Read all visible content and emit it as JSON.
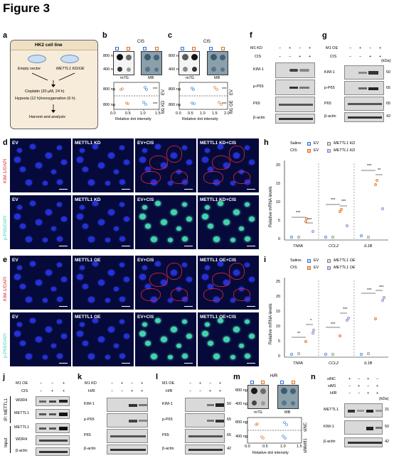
{
  "figure_title": "Figure 3",
  "panel_letters": [
    "a",
    "b",
    "c",
    "d",
    "e",
    "f",
    "g",
    "h",
    "i",
    "j",
    "k",
    "l",
    "m",
    "n"
  ],
  "panel_a": {
    "header": "HK2 cell line",
    "left_group": "Empty vector",
    "right_group": "METTL1 KD/OE",
    "step1": "Cisplatin (20 μM, 24 h)",
    "step2": "Hypoxia (12 h)/reoxygenation (6 h)",
    "step3": "Harvest and analysis"
  },
  "panel_b": {
    "top_label": "CIS",
    "amounts": [
      "800 ng",
      "400 ng"
    ],
    "stain_left": "m7G",
    "stain_right": "MB",
    "legend": [
      "EV",
      "M1 KD"
    ],
    "lower_amount": "800 ng",
    "xlabel": "Relative dot intensity",
    "ticks": [
      "0.0",
      "0.5",
      "1.0",
      "1.5"
    ],
    "sig": "***"
  },
  "panel_c": {
    "top_label": "CIS",
    "amounts": [
      "800 ng",
      "400 ng"
    ],
    "stain_left": "m7G",
    "stain_right": "MB",
    "legend": [
      "EV",
      "M1 OE"
    ],
    "lower_amount": "800 ng",
    "xlabel": "Relative dot intensity",
    "ticks": [
      "0.0",
      "0.5",
      "1.0",
      "1.5",
      "2.0"
    ],
    "sig": "***"
  },
  "panel_f": {
    "rows": [
      "M1 KD",
      "CIS"
    ],
    "row1": [
      "−",
      "+",
      "−",
      "+"
    ],
    "row2": [
      "−",
      "−",
      "+",
      "+"
    ],
    "bands": [
      "KIM-1",
      "p-P65",
      "P65",
      "β-actin"
    ]
  },
  "panel_g": {
    "rows": [
      "M1 OE",
      "CIS"
    ],
    "row1": [
      "−",
      "+",
      "−",
      "+"
    ],
    "row2": [
      "−",
      "−",
      "+",
      "+"
    ],
    "unit": "(kDa)",
    "bands": [
      "KIM-1",
      "p-P65",
      "P65",
      "β-actin"
    ],
    "kda": [
      "50",
      "65",
      "65",
      "42"
    ]
  },
  "panel_d": {
    "row_labels": [
      "KIM-1/DAPI",
      "p-P65/DAPI"
    ],
    "cols": [
      "EV",
      "METTL1 KD",
      "EV+CIS",
      "METTL1 KD+CIS"
    ]
  },
  "panel_e": {
    "row_labels": [
      "KIM-1/DAPI",
      "p-P65/DAPI"
    ],
    "cols": [
      "EV",
      "METTL1 OE",
      "EV+CIS",
      "METTL1 OE+CIS"
    ]
  },
  "panel_h": {
    "legend_saline": "Saline:",
    "legend_cis": "CIS:",
    "groups": [
      "EV",
      "METTL1 KD"
    ],
    "ylabel": "Relative mRNA levels",
    "genes": [
      "TNFA",
      "CCL2",
      "IL1B"
    ],
    "yticks": [
      "0",
      "5",
      "10",
      "15",
      "20"
    ],
    "sig": [
      "***",
      "***",
      "***",
      "***",
      "***",
      "**"
    ],
    "colors": {
      "saline_ev": "#2a6fdb",
      "saline_kd": "#7a7a7a",
      "cis_ev": "#e06a1b",
      "cis_kd": "#8d78c9"
    }
  },
  "panel_i": {
    "legend_saline": "Saline:",
    "legend_cis": "CIS:",
    "groups": [
      "EV",
      "METTL1 OE"
    ],
    "ylabel": "Relative mRNA levels",
    "genes": [
      "TNFA",
      "CCL2",
      "IL1B"
    ],
    "yticks": [
      "0",
      "5",
      "10",
      "15",
      "20",
      "25"
    ],
    "sig": [
      "**",
      "*",
      "***",
      "***",
      "***",
      "***"
    ]
  },
  "panel_j": {
    "rows": [
      "M1 OE",
      "CIS"
    ],
    "row1": [
      "−",
      "−",
      "+"
    ],
    "row2": [
      "−",
      "+",
      "+"
    ],
    "ip_label": "IP: METTL1",
    "input_label": "Input",
    "bands": [
      "WDR4",
      "METTL1",
      "METTL1",
      "WDR4",
      "β-actin"
    ]
  },
  "panel_k": {
    "rows": [
      "M1 KD",
      "H/R"
    ],
    "row1": [
      "−",
      "+",
      "−",
      "+"
    ],
    "row2": [
      "−",
      "−",
      "+",
      "+"
    ],
    "bands": [
      "KIM-1",
      "p-P65",
      "P65"
    ],
    "extra": "β-actin"
  },
  "panel_l": {
    "rows": [
      "M1 OE",
      "H/R"
    ],
    "row1": [
      "−",
      "+",
      "−",
      "+"
    ],
    "row2": [
      "−",
      "−",
      "+",
      "+"
    ],
    "bands": [
      "KIM-1",
      "p-P65",
      "P65",
      "β-actin"
    ],
    "kda": [
      "50",
      "65",
      "65",
      "42"
    ]
  },
  "panel_m": {
    "top_label": "H/R",
    "amounts": [
      "800 ng",
      "400 ng"
    ],
    "stain_left": "m7G",
    "stain_right": "MB",
    "legend": [
      "siNC",
      "siMettl1"
    ],
    "lower_amounts": [
      "800 ng",
      "400 ng"
    ],
    "xlabel": "Relative dot intensity",
    "ticks": [
      "0.0",
      "0.5",
      "1.0",
      "1.5"
    ]
  },
  "panel_n": {
    "rows": [
      "siNC",
      "siM1",
      "H/R"
    ],
    "row1": [
      "+",
      "−",
      "+",
      "−"
    ],
    "row2": [
      "−",
      "+",
      "−",
      "+"
    ],
    "row3": [
      "−",
      "−",
      "+",
      "+"
    ],
    "unit": "(kDa)",
    "bands": [
      "METTL1",
      "KIM-1",
      "β-actin"
    ],
    "kda": [
      "31",
      "50",
      "42"
    ]
  }
}
